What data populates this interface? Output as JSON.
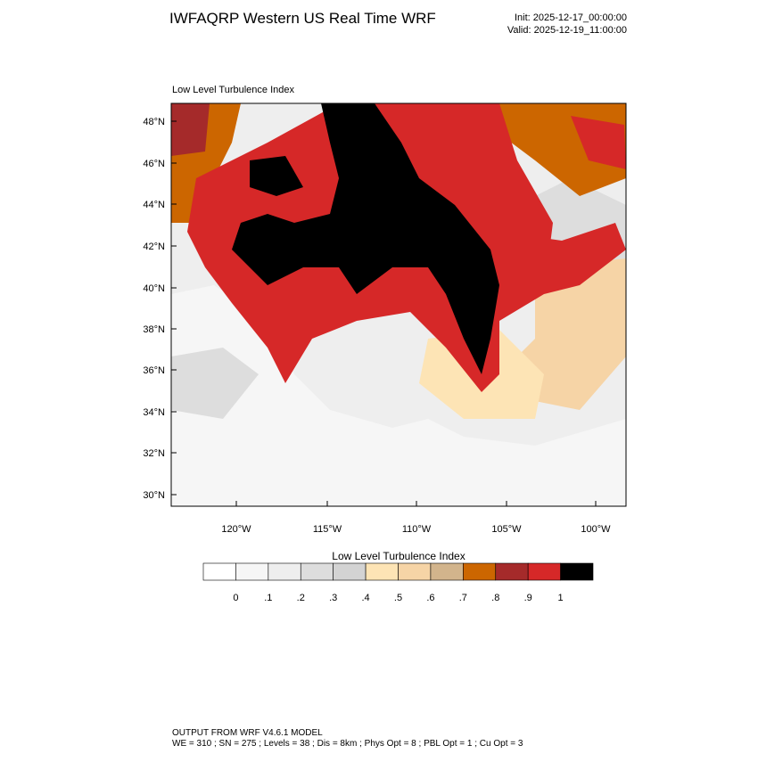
{
  "header": {
    "title": "IWFAQRP Western US Real Time WRF",
    "init": "Init: 2025-12-17_00:00:00",
    "valid": "Valid: 2025-12-19_11:00:00"
  },
  "map": {
    "title": "Low Level Turbulence Index",
    "lat_labels": [
      "48°N",
      "46°N",
      "44°N",
      "42°N",
      "40°N",
      "38°N",
      "36°N",
      "34°N",
      "32°N",
      "30°N"
    ],
    "lon_labels": [
      "120°W",
      "115°W",
      "110°W",
      "105°W",
      "100°W"
    ]
  },
  "colorbar": {
    "title": "Low Level Turbulence Index",
    "colors": [
      "#ffffff",
      "#f6f6f6",
      "#eeeeee",
      "#dddddd",
      "#d3d3d3",
      "#fde4b5",
      "#f6d4a6",
      "#d2b48c",
      "#cc6600",
      "#a52a2a",
      "#d62828",
      "#000000"
    ],
    "labels": [
      "0",
      ".1",
      ".2",
      ".3",
      ".4",
      ".5",
      ".6",
      ".7",
      ".8",
      ".9",
      "1"
    ]
  },
  "footer": {
    "line1": "OUTPUT FROM WRF V4.6.1 MODEL",
    "line2": "WE = 310 ; SN = 275 ; Levels = 38 ; Dis = 8km ; Phys Opt = 8 ; PBL Opt = 1 ; Cu Opt = 3"
  }
}
